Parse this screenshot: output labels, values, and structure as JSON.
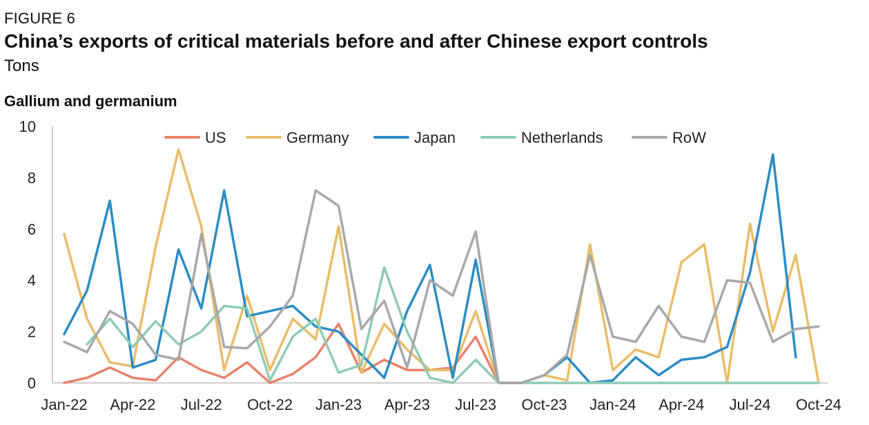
{
  "header": {
    "figure_label": "FIGURE 6",
    "title": "China’s exports of critical materials before and after Chinese export controls",
    "unit": "Tons",
    "panel_title": "Gallium and germanium"
  },
  "chart_data": {
    "type": "line",
    "title": "Gallium and germanium",
    "ylabel": "Tons",
    "ylim": [
      0,
      10
    ],
    "yticks": [
      "0",
      "2",
      "4",
      "6",
      "8",
      "10"
    ],
    "x": [
      "Jan-22",
      "Feb-22",
      "Mar-22",
      "Apr-22",
      "May-22",
      "Jun-22",
      "Jul-22",
      "Aug-22",
      "Sep-22",
      "Oct-22",
      "Nov-22",
      "Dec-22",
      "Jan-23",
      "Feb-23",
      "Mar-23",
      "Apr-23",
      "May-23",
      "Jun-23",
      "Jul-23",
      "Aug-23",
      "Sep-23",
      "Oct-23",
      "Nov-23",
      "Dec-23",
      "Jan-24",
      "Feb-24",
      "Mar-24",
      "Apr-24",
      "May-24",
      "Jun-24",
      "Jul-24",
      "Aug-24",
      "Sep-24",
      "Oct-24"
    ],
    "xtick_labels": [
      "Jan-22",
      "Apr-22",
      "Jul-22",
      "Oct-22",
      "Jan-23",
      "Apr-23",
      "Jul-23",
      "Oct-23",
      "Jan-24",
      "Apr-24",
      "Jul-24",
      "Oct-24"
    ],
    "legend_position": "top",
    "grid": false,
    "series": [
      {
        "name": "US",
        "color": "#e8826a",
        "values": [
          0,
          0.2,
          0.6,
          0.2,
          0.1,
          1.0,
          0.5,
          0.2,
          0.8,
          0,
          0.35,
          1.0,
          2.3,
          0.4,
          0.9,
          0.5,
          0.5,
          0.6,
          1.8,
          0,
          0,
          null,
          null,
          null,
          null,
          null,
          null,
          null,
          null,
          null,
          null,
          null,
          null,
          null
        ]
      },
      {
        "name": "Germany",
        "color": "#e8bd6a",
        "values": [
          5.8,
          2.5,
          0.8,
          0.65,
          5.3,
          9.1,
          6.1,
          0.5,
          3.4,
          0.5,
          2.5,
          1.7,
          6.1,
          0.4,
          2.3,
          1.3,
          0.5,
          0.5,
          2.8,
          0,
          0,
          0.3,
          0.1,
          5.4,
          0.5,
          1.3,
          1.0,
          4.7,
          5.4,
          0,
          6.2,
          2.0,
          5.0,
          0
        ]
      },
      {
        "name": "Japan",
        "color": "#2b8cc4",
        "values": [
          1.9,
          3.6,
          7.1,
          0.6,
          0.9,
          5.2,
          2.9,
          7.5,
          2.6,
          2.8,
          3.0,
          2.2,
          2.0,
          1.1,
          0.2,
          2.8,
          4.6,
          0.2,
          4.8,
          0,
          0,
          0.3,
          1.0,
          0,
          0.1,
          1.0,
          0.3,
          0.9,
          1.0,
          1.4,
          4.3,
          8.9,
          1.0,
          null
        ]
      },
      {
        "name": "Netherlands",
        "color": "#8fcbb4",
        "values": [
          null,
          1.5,
          2.5,
          1.4,
          2.4,
          1.5,
          2.0,
          3.0,
          2.9,
          0.1,
          1.8,
          2.5,
          0.4,
          0.7,
          4.5,
          2.0,
          0.2,
          0,
          0.9,
          0,
          0,
          0,
          0,
          0,
          0,
          0,
          0,
          0,
          0,
          0,
          0,
          0,
          0,
          0
        ]
      },
      {
        "name": "RoW",
        "color": "#a8a8a8",
        "values": [
          1.6,
          1.2,
          2.8,
          2.3,
          1.1,
          0.9,
          5.8,
          1.4,
          1.35,
          2.2,
          3.4,
          7.5,
          6.9,
          2.1,
          3.2,
          0.6,
          4.0,
          3.4,
          5.9,
          0,
          0,
          0.3,
          1.1,
          5.0,
          1.8,
          1.6,
          3.0,
          1.8,
          1.6,
          4.0,
          3.9,
          1.6,
          2.1,
          2.2
        ]
      }
    ]
  }
}
